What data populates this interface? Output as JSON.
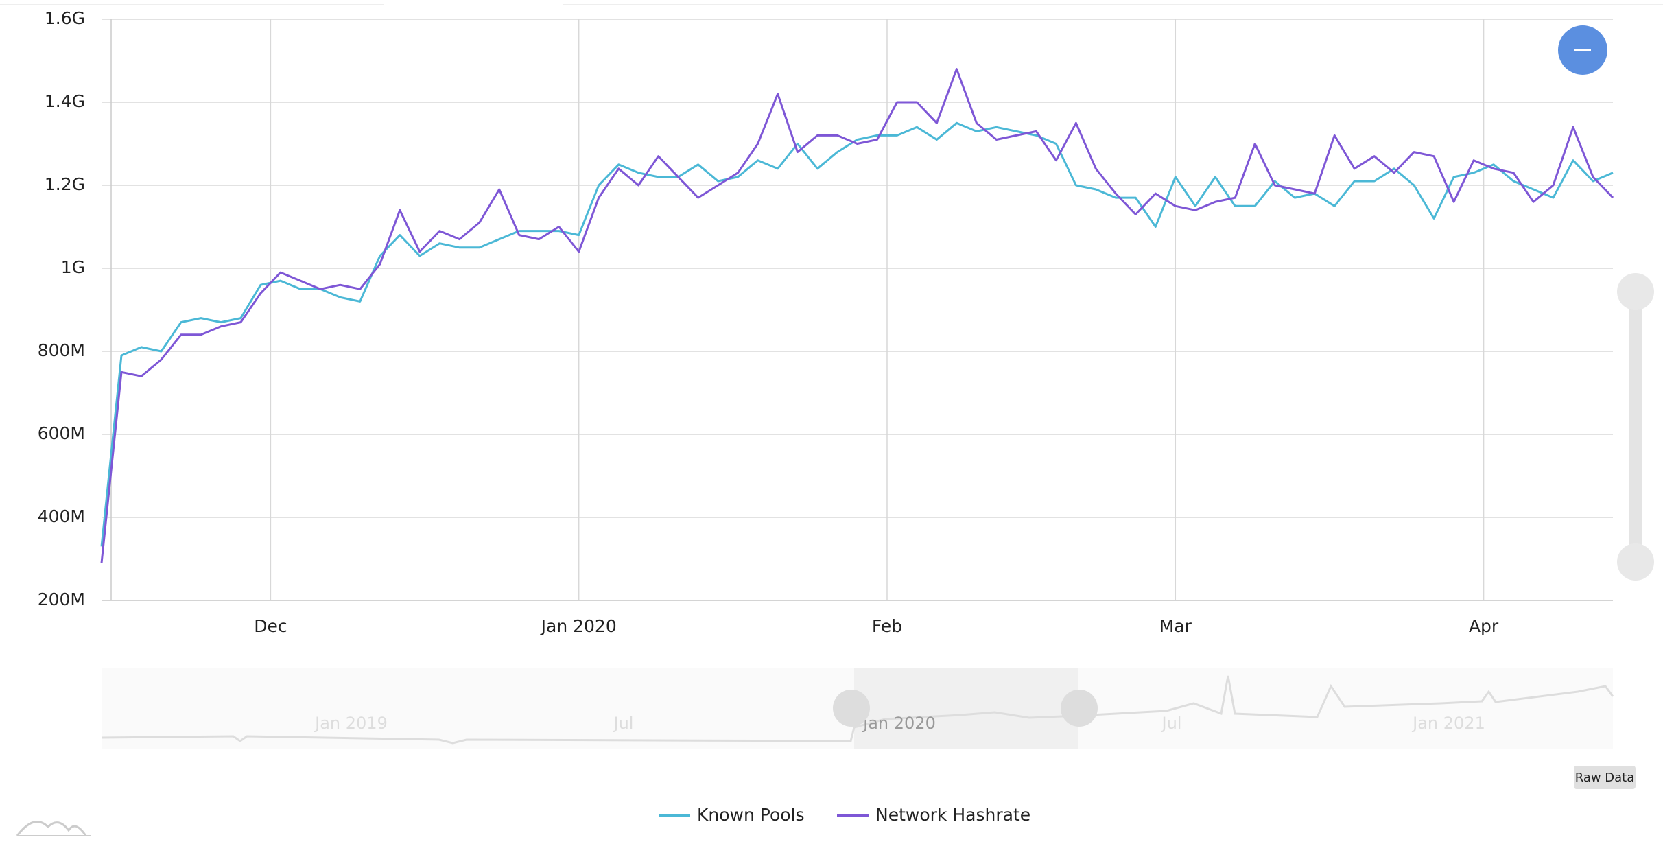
{
  "chart_data": {
    "type": "line",
    "x": [
      0,
      2,
      4,
      6,
      8,
      10,
      12,
      14,
      16,
      18,
      20,
      22,
      24,
      26,
      28,
      30,
      32,
      34,
      36,
      38,
      40,
      42,
      44,
      46,
      48,
      50,
      52,
      54,
      56,
      58,
      60,
      62,
      64,
      66,
      68,
      70,
      72,
      74,
      76,
      78,
      80,
      82,
      84,
      86,
      88,
      90,
      92,
      94,
      96,
      98,
      100,
      102,
      104,
      106,
      108,
      110,
      112,
      114,
      116,
      118,
      120,
      122,
      124,
      126,
      128,
      130,
      132,
      134,
      136,
      138,
      140,
      142,
      144,
      146,
      148,
      150,
      152
    ],
    "xlim": [
      0,
      152
    ],
    "xticks": [
      {
        "value": 17,
        "label": "Dec"
      },
      {
        "value": 48,
        "label": "Jan 2020"
      },
      {
        "value": 79,
        "label": "Feb"
      },
      {
        "value": 108,
        "label": "Mar"
      },
      {
        "value": 139,
        "label": "Apr"
      }
    ],
    "ylim": [
      200000000.0,
      1600000000.0
    ],
    "yticks": [
      {
        "value": 200000000.0,
        "label": "200M"
      },
      {
        "value": 400000000.0,
        "label": "400M"
      },
      {
        "value": 600000000.0,
        "label": "600M"
      },
      {
        "value": 800000000.0,
        "label": "800M"
      },
      {
        "value": 1000000000.0,
        "label": "1G"
      },
      {
        "value": 1200000000.0,
        "label": "1.2G"
      },
      {
        "value": 1400000000.0,
        "label": "1.4G"
      },
      {
        "value": 1600000000.0,
        "label": "1.6G"
      }
    ],
    "grid": true,
    "series": [
      {
        "name": "Known Pools",
        "color": "#4bb8d6",
        "values": [
          330000000.0,
          790000000.0,
          810000000.0,
          800000000.0,
          870000000.0,
          880000000.0,
          870000000.0,
          880000000.0,
          960000000.0,
          970000000.0,
          950000000.0,
          950000000.0,
          930000000.0,
          920000000.0,
          1030000000.0,
          1080000000.0,
          1030000000.0,
          1060000000.0,
          1050000000.0,
          1050000000.0,
          1070000000.0,
          1090000000.0,
          1090000000.0,
          1090000000.0,
          1080000000.0,
          1200000000.0,
          1250000000.0,
          1230000000.0,
          1220000000.0,
          1220000000.0,
          1250000000.0,
          1210000000.0,
          1220000000.0,
          1260000000.0,
          1240000000.0,
          1300000000.0,
          1240000000.0,
          1280000000.0,
          1310000000.0,
          1320000000.0,
          1320000000.0,
          1340000000.0,
          1310000000.0,
          1350000000.0,
          1330000000.0,
          1340000000.0,
          1330000000.0,
          1320000000.0,
          1300000000.0,
          1200000000.0,
          1190000000.0,
          1170000000.0,
          1170000000.0,
          1100000000.0,
          1220000000.0,
          1150000000.0,
          1220000000.0,
          1150000000.0,
          1150000000.0,
          1210000000.0,
          1170000000.0,
          1180000000.0,
          1150000000.0,
          1210000000.0,
          1210000000.0,
          1240000000.0,
          1200000000.0,
          1120000000.0,
          1220000000.0,
          1230000000.0,
          1250000000.0,
          1210000000.0,
          1190000000.0,
          1170000000.0,
          1260000000.0,
          1210000000.0,
          1230000000.0
        ]
      },
      {
        "name": "Network Hashrate",
        "color": "#7e57d6",
        "values": [
          290000000.0,
          750000000.0,
          740000000.0,
          780000000.0,
          840000000.0,
          840000000.0,
          860000000.0,
          870000000.0,
          940000000.0,
          990000000.0,
          970000000.0,
          950000000.0,
          960000000.0,
          950000000.0,
          1010000000.0,
          1140000000.0,
          1040000000.0,
          1090000000.0,
          1070000000.0,
          1110000000.0,
          1190000000.0,
          1080000000.0,
          1070000000.0,
          1100000000.0,
          1040000000.0,
          1170000000.0,
          1240000000.0,
          1200000000.0,
          1270000000.0,
          1220000000.0,
          1170000000.0,
          1200000000.0,
          1230000000.0,
          1300000000.0,
          1420000000.0,
          1280000000.0,
          1320000000.0,
          1320000000.0,
          1300000000.0,
          1310000000.0,
          1400000000.0,
          1400000000.0,
          1350000000.0,
          1480000000.0,
          1350000000.0,
          1310000000.0,
          1320000000.0,
          1330000000.0,
          1260000000.0,
          1350000000.0,
          1240000000.0,
          1180000000.0,
          1130000000.0,
          1180000000.0,
          1150000000.0,
          1140000000.0,
          1160000000.0,
          1170000000.0,
          1300000000.0,
          1200000000.0,
          1190000000.0,
          1180000000.0,
          1320000000.0,
          1240000000.0,
          1270000000.0,
          1230000000.0,
          1280000000.0,
          1270000000.0,
          1160000000.0,
          1260000000.0,
          1240000000.0,
          1230000000.0,
          1160000000.0,
          1200000000.0,
          1340000000.0,
          1220000000.0,
          1170000000.0
        ]
      }
    ]
  },
  "navigator": {
    "labels": [
      "Jan 2019",
      "Jul",
      "Jan 2020",
      "Jul",
      "Jan 2021"
    ]
  },
  "raw_data_button": "Raw Data"
}
